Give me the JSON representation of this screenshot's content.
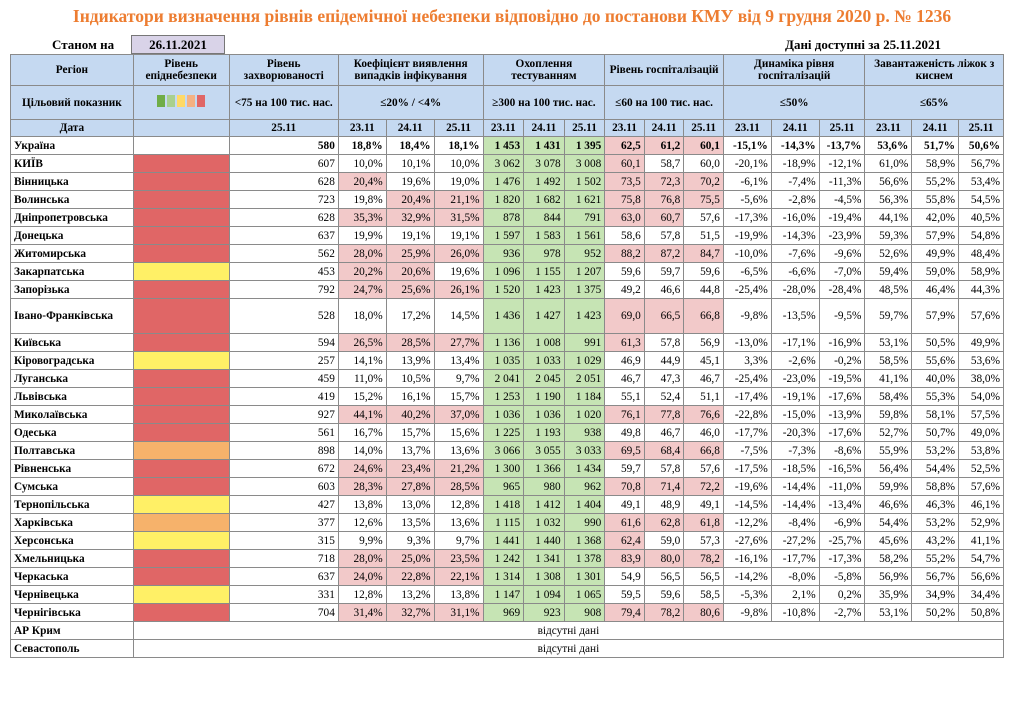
{
  "header": {
    "title": "Індикатори визначення рівнів епідемічної небезпеки відповідно до постанови КМУ від 9 грудня 2020 р. № 1236",
    "stan_label": "Станом на",
    "stan_date": "26.11.2021",
    "available_label": "Дані доступні за  25.11.2021"
  },
  "colors": {
    "red": "#E06666",
    "orange": "#F6B26B",
    "yellow": "#FFF066",
    "green": "#93C47D",
    "swatches": [
      "#70AD47",
      "#A9D08E",
      "#FFD966",
      "#F4B183",
      "#E06666"
    ]
  },
  "columns": {
    "region": "Регіон",
    "level": "Рівень епіднебезпеки",
    "incidence": "Рівень захворюваності",
    "detection": "Коефіцієнт виявлення випадків інфікування",
    "testing": "Охоплення тестуванням",
    "hosp": "Рівень госпіталізацій",
    "dynamics": "Динаміка рівня госпіталізацій",
    "beds": "Завантаженість ліжок з киснем"
  },
  "targets": {
    "label": "Цільовий показник",
    "incidence": "<75 на 100 тис. нас.",
    "detection": "≤20% / <4%",
    "testing": "≥300 на 100 тис. нас.",
    "hosp": "≤60 на 100 тис. нас.",
    "dynamics": "≤50%",
    "beds": "≤65%"
  },
  "dates": {
    "label": "Дата",
    "incidence": "25.11",
    "triple": [
      "23.11",
      "24.11",
      "25.11"
    ]
  },
  "rows": [
    {
      "region": "Україна",
      "level": "",
      "inc": "580",
      "det": [
        "18,8%",
        "18,4%",
        "18,1%"
      ],
      "test": [
        "1 453",
        "1 431",
        "1 395"
      ],
      "hosp": [
        "62,5",
        "61,2",
        "60,1"
      ],
      "dyn": [
        "-15,1%",
        "-14,3%",
        "-13,7%"
      ],
      "beds": [
        "53,6%",
        "51,7%",
        "50,6%"
      ]
    },
    {
      "region": "КИЇВ",
      "level": "red",
      "inc": "607",
      "det": [
        "10,0%",
        "10,1%",
        "10,0%"
      ],
      "test": [
        "3 062",
        "3 078",
        "3 008"
      ],
      "hosp": [
        "60,1",
        "58,7",
        "60,0"
      ],
      "dyn": [
        "-20,1%",
        "-18,9%",
        "-12,1%"
      ],
      "beds": [
        "61,0%",
        "58,9%",
        "56,7%"
      ]
    },
    {
      "region": "Вінницька",
      "level": "red",
      "inc": "628",
      "det": [
        "20,4%",
        "19,6%",
        "19,0%"
      ],
      "test": [
        "1 476",
        "1 492",
        "1 502"
      ],
      "hosp": [
        "73,5",
        "72,3",
        "70,2"
      ],
      "dyn": [
        "-6,1%",
        "-7,4%",
        "-11,3%"
      ],
      "beds": [
        "56,6%",
        "55,2%",
        "53,4%"
      ]
    },
    {
      "region": "Волинська",
      "level": "red",
      "inc": "723",
      "det": [
        "19,8%",
        "20,4%",
        "21,1%"
      ],
      "test": [
        "1 820",
        "1 682",
        "1 621"
      ],
      "hosp": [
        "75,8",
        "76,8",
        "75,5"
      ],
      "dyn": [
        "-5,6%",
        "-2,8%",
        "-4,5%"
      ],
      "beds": [
        "56,3%",
        "55,8%",
        "54,5%"
      ]
    },
    {
      "region": "Дніпропетровська",
      "level": "red",
      "inc": "628",
      "det": [
        "35,3%",
        "32,9%",
        "31,5%"
      ],
      "test": [
        "878",
        "844",
        "791"
      ],
      "hosp": [
        "63,0",
        "60,7",
        "57,6"
      ],
      "dyn": [
        "-17,3%",
        "-16,0%",
        "-19,4%"
      ],
      "beds": [
        "44,1%",
        "42,0%",
        "40,5%"
      ]
    },
    {
      "region": "Донецька",
      "level": "red",
      "inc": "637",
      "det": [
        "19,9%",
        "19,1%",
        "19,1%"
      ],
      "test": [
        "1 597",
        "1 583",
        "1 561"
      ],
      "hosp": [
        "58,6",
        "57,8",
        "51,5"
      ],
      "dyn": [
        "-19,9%",
        "-14,3%",
        "-23,9%"
      ],
      "beds": [
        "59,3%",
        "57,9%",
        "54,8%"
      ]
    },
    {
      "region": "Житомирська",
      "level": "red",
      "inc": "562",
      "det": [
        "28,0%",
        "25,9%",
        "26,0%"
      ],
      "test": [
        "936",
        "978",
        "952"
      ],
      "hosp": [
        "88,2",
        "87,2",
        "84,7"
      ],
      "dyn": [
        "-10,0%",
        "-7,6%",
        "-9,6%"
      ],
      "beds": [
        "52,6%",
        "49,9%",
        "48,4%"
      ]
    },
    {
      "region": "Закарпатська",
      "level": "yellow",
      "inc": "453",
      "det": [
        "20,2%",
        "20,6%",
        "19,6%"
      ],
      "test": [
        "1 096",
        "1 155",
        "1 207"
      ],
      "hosp": [
        "59,6",
        "59,7",
        "59,6"
      ],
      "dyn": [
        "-6,5%",
        "-6,6%",
        "-7,0%"
      ],
      "beds": [
        "59,4%",
        "59,0%",
        "58,9%"
      ]
    },
    {
      "region": "Запорізька",
      "level": "red",
      "inc": "792",
      "det": [
        "24,7%",
        "25,6%",
        "26,1%"
      ],
      "test": [
        "1 520",
        "1 423",
        "1 375"
      ],
      "hosp": [
        "49,2",
        "46,6",
        "44,8"
      ],
      "dyn": [
        "-25,4%",
        "-28,0%",
        "-28,4%"
      ],
      "beds": [
        "48,5%",
        "46,4%",
        "44,3%"
      ]
    },
    {
      "region": "Івано-Франківська",
      "level": "red",
      "inc": "528",
      "det": [
        "18,0%",
        "17,2%",
        "14,5%"
      ],
      "test": [
        "1 436",
        "1 427",
        "1 423"
      ],
      "hosp": [
        "69,0",
        "66,5",
        "66,8"
      ],
      "dyn": [
        "-9,8%",
        "-13,5%",
        "-9,5%"
      ],
      "beds": [
        "59,7%",
        "57,9%",
        "57,6%"
      ],
      "tall": true
    },
    {
      "region": "Київська",
      "level": "red",
      "inc": "594",
      "det": [
        "26,5%",
        "28,5%",
        "27,7%"
      ],
      "test": [
        "1 136",
        "1 008",
        "991"
      ],
      "hosp": [
        "61,3",
        "57,8",
        "56,9"
      ],
      "dyn": [
        "-13,0%",
        "-17,1%",
        "-16,9%"
      ],
      "beds": [
        "53,1%",
        "50,5%",
        "49,9%"
      ]
    },
    {
      "region": "Кіровоградська",
      "level": "yellow",
      "inc": "257",
      "det": [
        "14,1%",
        "13,9%",
        "13,4%"
      ],
      "test": [
        "1 035",
        "1 033",
        "1 029"
      ],
      "hosp": [
        "46,9",
        "44,9",
        "45,1"
      ],
      "dyn": [
        "3,3%",
        "-2,6%",
        "-0,2%"
      ],
      "beds": [
        "58,5%",
        "55,6%",
        "53,6%"
      ]
    },
    {
      "region": "Луганська",
      "level": "red",
      "inc": "459",
      "det": [
        "11,0%",
        "10,5%",
        "9,7%"
      ],
      "test": [
        "2 041",
        "2 045",
        "2 051"
      ],
      "hosp": [
        "46,7",
        "47,3",
        "46,7"
      ],
      "dyn": [
        "-25,4%",
        "-23,0%",
        "-19,5%"
      ],
      "beds": [
        "41,1%",
        "40,0%",
        "38,0%"
      ]
    },
    {
      "region": "Львівська",
      "level": "red",
      "inc": "419",
      "det": [
        "15,2%",
        "16,1%",
        "15,7%"
      ],
      "test": [
        "1 253",
        "1 190",
        "1 184"
      ],
      "hosp": [
        "55,1",
        "52,4",
        "51,1"
      ],
      "dyn": [
        "-17,4%",
        "-19,1%",
        "-17,6%"
      ],
      "beds": [
        "58,4%",
        "55,3%",
        "54,0%"
      ]
    },
    {
      "region": "Миколаївська",
      "level": "red",
      "inc": "927",
      "det": [
        "44,1%",
        "40,2%",
        "37,0%"
      ],
      "test": [
        "1 036",
        "1 036",
        "1 020"
      ],
      "hosp": [
        "76,1",
        "77,8",
        "76,6"
      ],
      "dyn": [
        "-22,8%",
        "-15,0%",
        "-13,9%"
      ],
      "beds": [
        "59,8%",
        "58,1%",
        "57,5%"
      ]
    },
    {
      "region": "Одеська",
      "level": "red",
      "inc": "561",
      "det": [
        "16,7%",
        "15,7%",
        "15,6%"
      ],
      "test": [
        "1 225",
        "1 193",
        "938"
      ],
      "hosp": [
        "49,8",
        "46,7",
        "46,0"
      ],
      "dyn": [
        "-17,7%",
        "-20,3%",
        "-17,6%"
      ],
      "beds": [
        "52,7%",
        "50,7%",
        "49,0%"
      ]
    },
    {
      "region": "Полтавська",
      "level": "orange",
      "inc": "898",
      "det": [
        "14,0%",
        "13,7%",
        "13,6%"
      ],
      "test": [
        "3 066",
        "3 055",
        "3 033"
      ],
      "hosp": [
        "69,5",
        "68,4",
        "66,8"
      ],
      "dyn": [
        "-7,5%",
        "-7,3%",
        "-8,6%"
      ],
      "beds": [
        "55,9%",
        "53,2%",
        "53,8%"
      ]
    },
    {
      "region": "Рівненська",
      "level": "red",
      "inc": "672",
      "det": [
        "24,6%",
        "23,4%",
        "21,2%"
      ],
      "test": [
        "1 300",
        "1 366",
        "1 434"
      ],
      "hosp": [
        "59,7",
        "57,8",
        "57,6"
      ],
      "dyn": [
        "-17,5%",
        "-18,5%",
        "-16,5%"
      ],
      "beds": [
        "56,4%",
        "54,4%",
        "52,5%"
      ]
    },
    {
      "region": "Сумська",
      "level": "red",
      "inc": "603",
      "det": [
        "28,3%",
        "27,8%",
        "28,5%"
      ],
      "test": [
        "965",
        "980",
        "962"
      ],
      "hosp": [
        "70,8",
        "71,4",
        "72,2"
      ],
      "dyn": [
        "-19,6%",
        "-14,4%",
        "-11,0%"
      ],
      "beds": [
        "59,9%",
        "58,8%",
        "57,6%"
      ]
    },
    {
      "region": "Тернопільська",
      "level": "yellow",
      "inc": "427",
      "det": [
        "13,8%",
        "13,0%",
        "12,8%"
      ],
      "test": [
        "1 418",
        "1 412",
        "1 404"
      ],
      "hosp": [
        "49,1",
        "48,9",
        "49,1"
      ],
      "dyn": [
        "-14,5%",
        "-14,4%",
        "-13,4%"
      ],
      "beds": [
        "46,6%",
        "46,3%",
        "46,1%"
      ]
    },
    {
      "region": "Харківська",
      "level": "orange",
      "inc": "377",
      "det": [
        "12,6%",
        "13,5%",
        "13,6%"
      ],
      "test": [
        "1 115",
        "1 032",
        "990"
      ],
      "hosp": [
        "61,6",
        "62,8",
        "61,8"
      ],
      "dyn": [
        "-12,2%",
        "-8,4%",
        "-6,9%"
      ],
      "beds": [
        "54,4%",
        "53,2%",
        "52,9%"
      ]
    },
    {
      "region": "Херсонська",
      "level": "yellow",
      "inc": "315",
      "det": [
        "9,9%",
        "9,3%",
        "9,7%"
      ],
      "test": [
        "1 441",
        "1 440",
        "1 368"
      ],
      "hosp": [
        "62,4",
        "59,0",
        "57,3"
      ],
      "dyn": [
        "-27,6%",
        "-27,2%",
        "-25,7%"
      ],
      "beds": [
        "45,6%",
        "43,2%",
        "41,1%"
      ]
    },
    {
      "region": "Хмельницька",
      "level": "red",
      "inc": "718",
      "det": [
        "28,0%",
        "25,0%",
        "23,5%"
      ],
      "test": [
        "1 242",
        "1 341",
        "1 378"
      ],
      "hosp": [
        "83,9",
        "80,0",
        "78,2"
      ],
      "dyn": [
        "-16,1%",
        "-17,7%",
        "-17,3%"
      ],
      "beds": [
        "58,2%",
        "55,2%",
        "54,7%"
      ]
    },
    {
      "region": "Черкаська",
      "level": "red",
      "inc": "637",
      "det": [
        "24,0%",
        "22,8%",
        "22,1%"
      ],
      "test": [
        "1 314",
        "1 308",
        "1 301"
      ],
      "hosp": [
        "54,9",
        "56,5",
        "56,5"
      ],
      "dyn": [
        "-14,2%",
        "-8,0%",
        "-5,8%"
      ],
      "beds": [
        "56,9%",
        "56,7%",
        "56,6%"
      ]
    },
    {
      "region": "Чернівецька",
      "level": "yellow",
      "inc": "331",
      "det": [
        "12,8%",
        "13,2%",
        "13,8%"
      ],
      "test": [
        "1 147",
        "1 094",
        "1 065"
      ],
      "hosp": [
        "59,5",
        "59,6",
        "58,5"
      ],
      "dyn": [
        "-5,3%",
        "2,1%",
        "0,2%"
      ],
      "beds": [
        "35,9%",
        "34,9%",
        "34,4%"
      ]
    },
    {
      "region": "Чернігівська",
      "level": "red",
      "inc": "704",
      "det": [
        "31,4%",
        "32,7%",
        "31,1%"
      ],
      "test": [
        "969",
        "923",
        "908"
      ],
      "hosp": [
        "79,4",
        "78,2",
        "80,6"
      ],
      "dyn": [
        "-9,8%",
        "-10,8%",
        "-2,7%"
      ],
      "beds": [
        "53,1%",
        "50,2%",
        "50,8%"
      ]
    }
  ],
  "nodata_rows": [
    {
      "region": "АР Крим",
      "text": "відсутні дані"
    },
    {
      "region": "Севастополь",
      "text": "відсутні дані"
    }
  ]
}
